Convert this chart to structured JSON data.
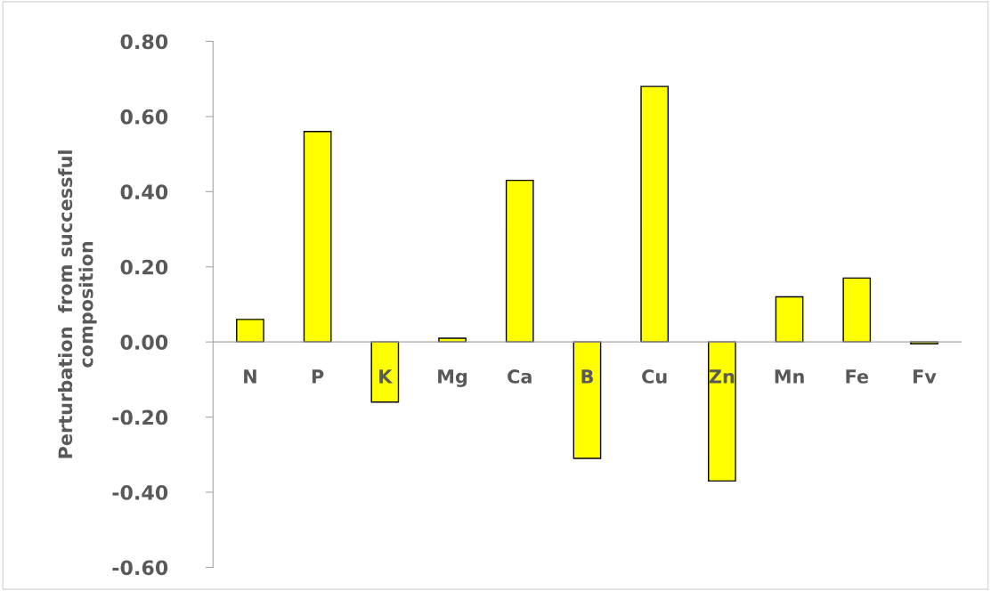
{
  "chart_data": {
    "type": "bar",
    "ylabel": "Perturbation  from successful\ncomposition",
    "categories": [
      "N",
      "P",
      "K",
      "Mg",
      "Ca",
      "B",
      "Cu",
      "Zn",
      "Mn",
      "Fe",
      "Fv"
    ],
    "values": [
      0.06,
      0.56,
      -0.16,
      0.01,
      0.43,
      -0.31,
      0.68,
      -0.37,
      0.12,
      0.17,
      -0.005
    ],
    "color": "#ffff00",
    "ylim": [
      -0.6,
      0.8
    ],
    "yticks": [
      {
        "value": -0.6,
        "label": "-0.60"
      },
      {
        "value": -0.4,
        "label": "-0.40"
      },
      {
        "value": -0.2,
        "label": "-0.20"
      },
      {
        "value": 0,
        "label": "0.00"
      },
      {
        "value": 0.2,
        "label": "0.20"
      },
      {
        "value": 0.4,
        "label": "0.40"
      },
      {
        "value": 0.6,
        "label": "0.60"
      },
      {
        "value": 0.8,
        "label": "0.80"
      }
    ],
    "grid": false,
    "legend": false
  }
}
